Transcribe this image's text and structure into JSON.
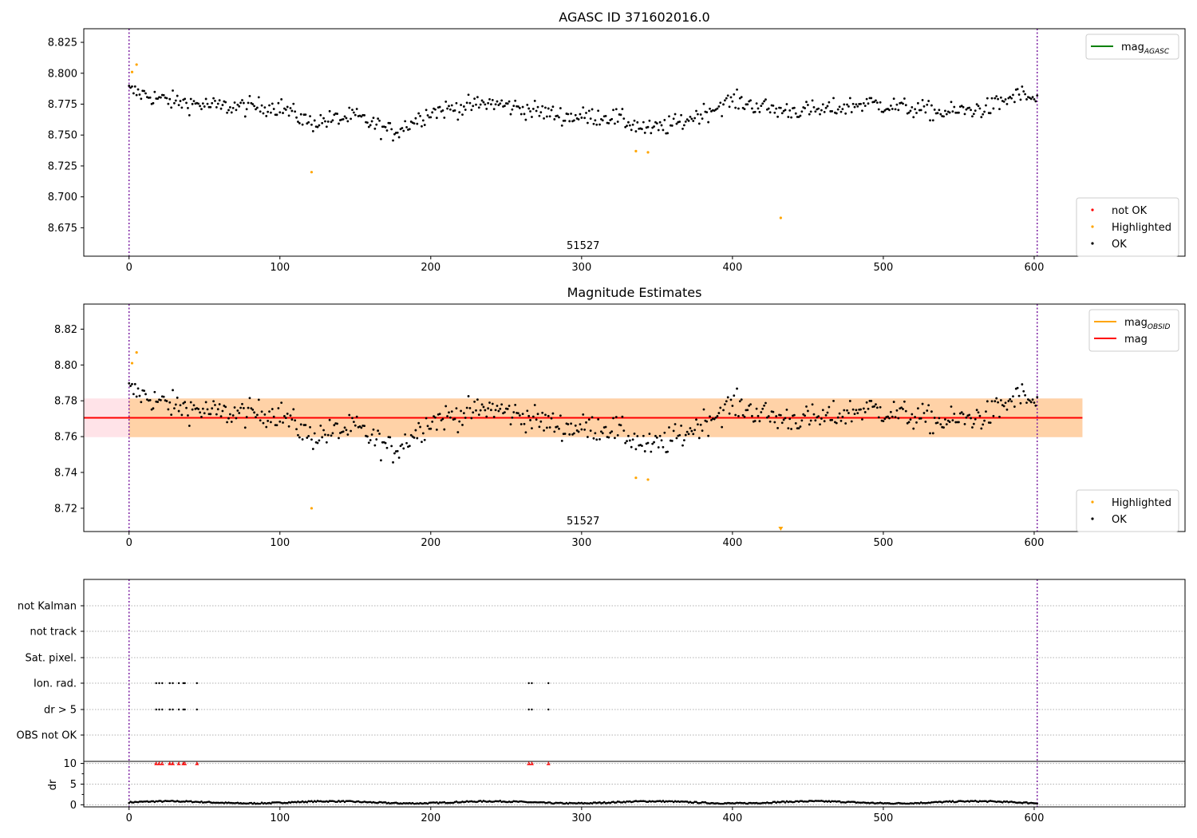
{
  "chart_data": [
    {
      "type": "scatter",
      "title": "AGASC ID 371602016.0",
      "xlabel": "",
      "ylabel": "",
      "xlim": [
        -30,
        700
      ],
      "ylim": [
        8.652,
        8.836
      ],
      "xticks": [
        0,
        100,
        200,
        300,
        400,
        500,
        600
      ],
      "yticks": [
        8.675,
        8.7,
        8.725,
        8.75,
        8.775,
        8.8,
        8.825
      ],
      "ytick_labels": [
        "8.675",
        "8.700",
        "8.725",
        "8.750",
        "8.775",
        "8.800",
        "8.825"
      ],
      "obsid_label": "51527",
      "obs_boundaries": [
        0,
        602
      ],
      "series": [
        {
          "name": "OK",
          "color": "#000000",
          "trend": [
            [
              0,
              8.786
            ],
            [
              25,
              8.778
            ],
            [
              60,
              8.773
            ],
            [
              100,
              8.773
            ],
            [
              120,
              8.76
            ],
            [
              150,
              8.765
            ],
            [
              175,
              8.752
            ],
            [
              200,
              8.769
            ],
            [
              240,
              8.776
            ],
            [
              290,
              8.765
            ],
            [
              320,
              8.765
            ],
            [
              345,
              8.754
            ],
            [
              365,
              8.76
            ],
            [
              400,
              8.778
            ],
            [
              430,
              8.77
            ],
            [
              460,
              8.77
            ],
            [
              490,
              8.776
            ],
            [
              540,
              8.768
            ],
            [
              570,
              8.772
            ],
            [
              590,
              8.783
            ],
            [
              602,
              8.778
            ]
          ],
          "noise": 0.007
        },
        {
          "name": "Highlighted",
          "color": "#ffa500",
          "x": [
            2,
            5,
            121,
            336,
            344,
            432
          ],
          "y": [
            8.801,
            8.807,
            8.72,
            8.737,
            8.736,
            8.683
          ]
        },
        {
          "name": "not OK",
          "color": "#ff0000",
          "x": [],
          "y": []
        }
      ],
      "lines": [
        {
          "name": "mag_AGASC",
          "color": "#008000"
        }
      ],
      "legends": [
        {
          "position": "top-right",
          "items": [
            {
              "label": "mag",
              "sub": "AGASC",
              "kind": "line",
              "color": "#008000"
            }
          ]
        },
        {
          "position": "bottom-right",
          "items": [
            {
              "label": "not OK",
              "kind": "dot",
              "color": "#ff0000"
            },
            {
              "label": "Highlighted",
              "kind": "dot",
              "color": "#ffa500"
            },
            {
              "label": "OK",
              "kind": "dot",
              "color": "#000000"
            }
          ]
        }
      ]
    },
    {
      "type": "scatter",
      "title": "Magnitude Estimates",
      "xlabel": "",
      "ylabel": "",
      "xlim": [
        -30,
        700
      ],
      "ylim": [
        8.707,
        8.834
      ],
      "xticks": [
        0,
        100,
        200,
        300,
        400,
        500,
        600
      ],
      "yticks": [
        8.72,
        8.74,
        8.76,
        8.78,
        8.8,
        8.82
      ],
      "ytick_labels": [
        "8.72",
        "8.74",
        "8.76",
        "8.78",
        "8.80",
        "8.82"
      ],
      "obsid_label": "51527",
      "obs_boundaries": [
        0,
        602
      ],
      "mag": 8.7705,
      "mag_band": [
        8.7597,
        8.7813
      ],
      "mag_obsid_band": [
        8.7597,
        8.7813
      ],
      "band_span": [
        -30,
        632
      ],
      "inner_span": [
        0,
        632
      ],
      "series": [
        {
          "name": "OK",
          "color": "#000000",
          "same_as_panel": 0
        },
        {
          "name": "Highlighted",
          "color": "#ffa500",
          "x": [
            2,
            5,
            121,
            336,
            344
          ],
          "y": [
            8.801,
            8.807,
            8.72,
            8.737,
            8.736
          ]
        },
        {
          "name": "Highlighted (below axis)",
          "color": "#ffa500",
          "x": [
            432
          ],
          "marker": "down-triangle"
        }
      ],
      "legends": [
        {
          "position": "top-right",
          "items": [
            {
              "label": "mag",
              "sub": "OBSID",
              "kind": "line",
              "color": "#ffa500"
            },
            {
              "label": "mag",
              "sub": "",
              "kind": "line",
              "color": "#ff0000"
            }
          ]
        },
        {
          "position": "bottom-right",
          "items": [
            {
              "label": "Highlighted",
              "kind": "dot",
              "color": "#ffa500"
            },
            {
              "label": "OK",
              "kind": "dot",
              "color": "#000000"
            }
          ]
        }
      ]
    },
    {
      "type": "scatter",
      "title": "",
      "xlabel": "",
      "xlim": [
        -30,
        700
      ],
      "xticks": [
        0,
        100,
        200,
        300,
        400,
        500,
        600
      ],
      "obs_boundaries": [
        0,
        602
      ],
      "flag_rows": [
        "not Kalman",
        "not track",
        "Sat. pixel.",
        "Ion. rad.",
        "dr > 5",
        "OBS not OK"
      ],
      "flag_points": {
        "Ion. rad.": [
          18,
          20,
          22,
          27,
          29,
          33,
          36,
          37,
          45,
          265,
          267,
          278
        ],
        "dr > 5": [
          18,
          20,
          22,
          27,
          29,
          33,
          36,
          37,
          45,
          265,
          267,
          278
        ]
      },
      "dr_axis": {
        "ylabel": "dr",
        "ylim": [
          -0.5,
          10.5
        ],
        "yticks": [
          0,
          5,
          10
        ],
        "high_marker_value": 10,
        "high_marker_x": [
          18,
          20,
          22,
          27,
          29,
          33,
          36,
          37,
          45,
          265,
          267,
          278
        ],
        "high_marker_color": "#ff0000",
        "typical": 0.6
      }
    }
  ]
}
